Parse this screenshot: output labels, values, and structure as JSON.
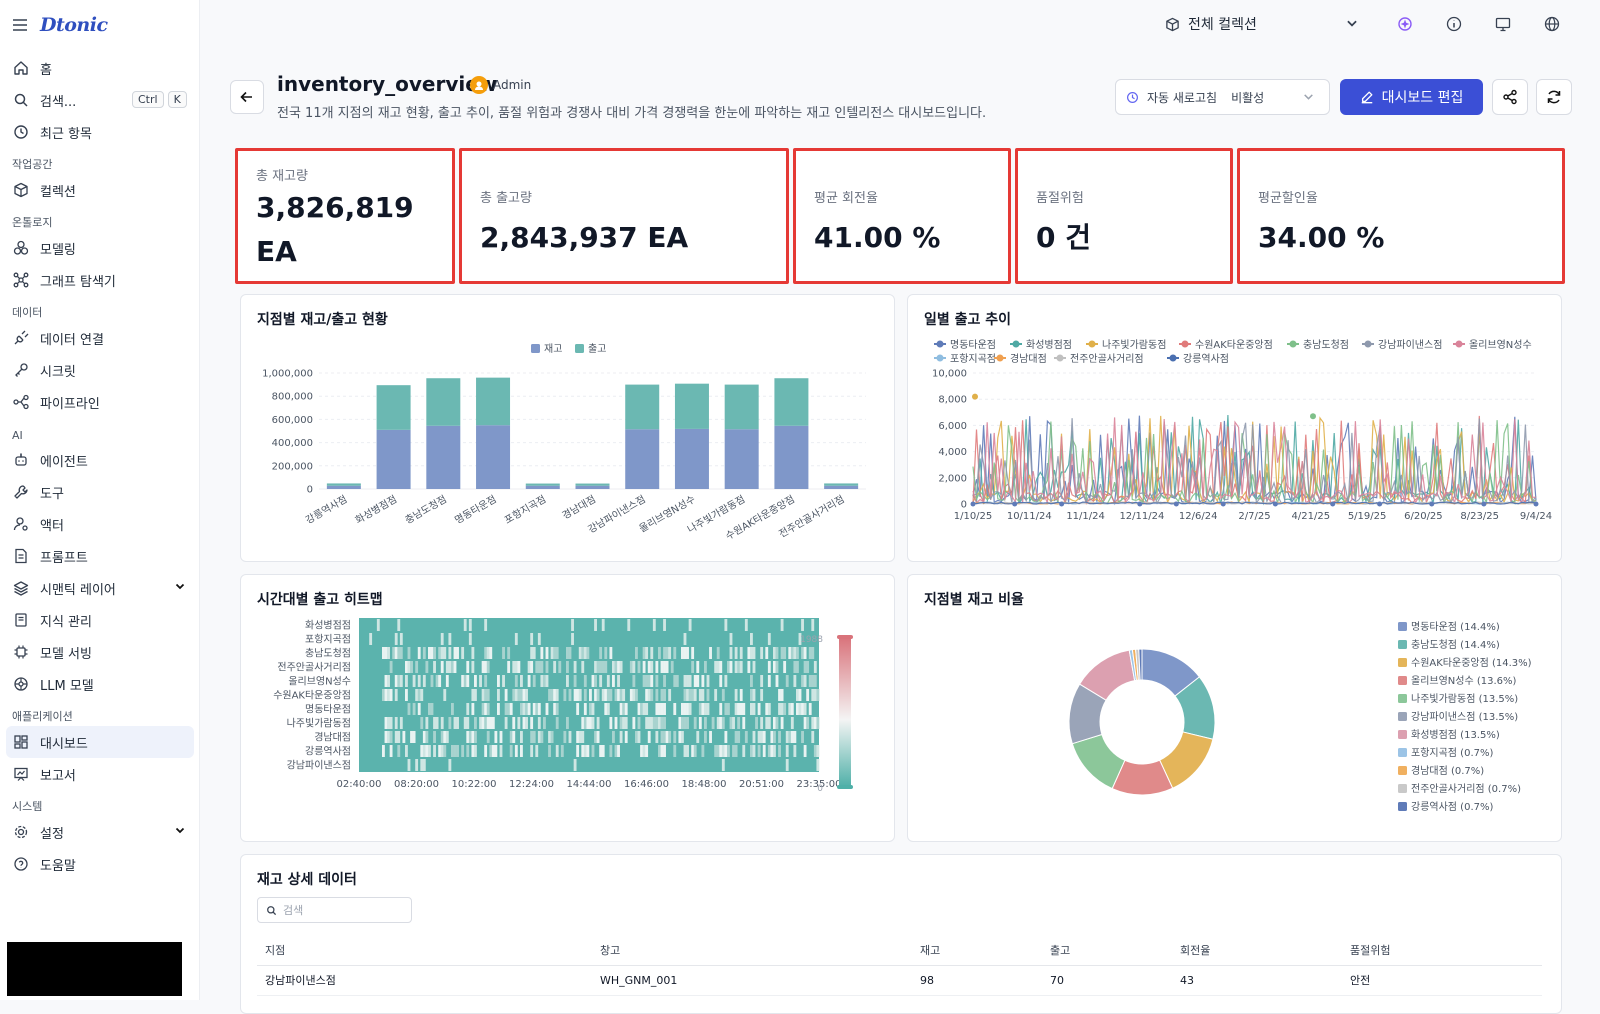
{
  "app": {
    "logo": "Dtonic",
    "user_box_color": "#000000"
  },
  "sidebar": {
    "home": "홈",
    "search": "검색...",
    "search_kbd1": "Ctrl",
    "search_kbd2": "K",
    "recent": "최근 항목",
    "group_workspace": "작업공간",
    "collection": "컬렉션",
    "group_ontology": "온톨로지",
    "modeling": "모델링",
    "graph_explorer": "그래프 탐색기",
    "group_data": "데이터",
    "data_connect": "데이터 연결",
    "secret": "시크릿",
    "pipeline": "파이프라인",
    "group_ai": "AI",
    "agent": "에이전트",
    "tool": "도구",
    "actor": "액터",
    "prompt": "프롬프트",
    "semantic_layer": "시맨틱 레이어",
    "knowledge": "지식 관리",
    "model_serving": "모델 서빙",
    "llm_model": "LLM 모델",
    "group_app": "애플리케이션",
    "dashboard": "대시보드",
    "report": "보고서",
    "group_system": "시스템",
    "settings": "설정",
    "help": "도움말"
  },
  "topbar": {
    "collection_selector": "전체 컬렉션"
  },
  "header": {
    "title": "inventory_overview",
    "owner": "Admin",
    "description": "전국 11개 지점의 재고 현황, 출고 추이, 품절 위험과 경쟁사 대비 가격 경쟁력을 한눈에 파악하는 재고 인텔리전스 대시보드입니다.",
    "auto_refresh_label": "자동 새로고침",
    "auto_refresh_value": "비활성",
    "edit_button": "대시보드 편집"
  },
  "kpis": [
    {
      "label": "총 재고량",
      "value": "3,826,819 EA"
    },
    {
      "label": "총 출고량",
      "value": "2,843,937 EA"
    },
    {
      "label": "평균 회전율",
      "value": "41.00 %"
    },
    {
      "label": "품절위험",
      "value": "0 건"
    },
    {
      "label": "평균할인율",
      "value": "34.00 %"
    }
  ],
  "colors": {
    "accent": "#3b4fd6",
    "kpi_border": "#e53935",
    "stock": "#7f97c9",
    "ship": "#6bb8b2"
  },
  "charts": {
    "bar_title": "지점별 재고/출고 현황",
    "line_title": "일별 출고 추이",
    "heatmap_title": "시간대별 출고 히트맵",
    "pie_title": "지점별 재고 비율"
  },
  "chart_data": [
    {
      "type": "bar",
      "title": "지점별 재고/출고 현황",
      "stacked": true,
      "categories": [
        "강릉역사점",
        "화성병점점",
        "충남도청점",
        "명동타운점",
        "포항지곡점",
        "경남대점",
        "강남파이낸스점",
        "올리브영N성수",
        "나주빛가람동점",
        "수원AK타운중앙점",
        "전주안골사거리점"
      ],
      "series": [
        {
          "name": "재고",
          "values": [
            28000,
            510000,
            545000,
            550000,
            28000,
            28000,
            515000,
            518000,
            515000,
            545000,
            28000
          ]
        },
        {
          "name": "출고",
          "values": [
            20000,
            385000,
            410000,
            410000,
            19000,
            19000,
            385000,
            390000,
            385000,
            410000,
            20000
          ]
        }
      ],
      "yticks": [
        "1,000,000",
        "800,000",
        "600,000",
        "400,000",
        "200,000",
        "0"
      ],
      "ylim": [
        0,
        1000000
      ],
      "legend": "top-center"
    },
    {
      "type": "line",
      "title": "일별 출고 추이",
      "series_names": [
        "명동타운점",
        "화성병점점",
        "나주빛가람동점",
        "수원AK타운중앙점",
        "충남도청점",
        "강남파이낸스점",
        "올리브영N성수",
        "포항지곡점",
        "경남대점",
        "전주안골사거리점",
        "강릉역사점"
      ],
      "series_colors": [
        "#5f7bb8",
        "#4fa9a4",
        "#e0b04a",
        "#e07b7b",
        "#7fc08a",
        "#8e99ad",
        "#d9849a",
        "#8fbde0",
        "#f0a050",
        "#c0c0c0",
        "#4a6fb0"
      ],
      "xticks": [
        "1/10/25",
        "10/11/24",
        "11/1/24",
        "12/11/24",
        "12/6/24",
        "2/7/25",
        "4/21/25",
        "5/19/25",
        "6/20/25",
        "8/23/25",
        "9/4/24"
      ],
      "yticks": [
        "10,000",
        "8,000",
        "6,000",
        "4,000",
        "2,000",
        "0"
      ],
      "ylim": [
        0,
        10000
      ],
      "legend": "top"
    },
    {
      "type": "heatmap",
      "title": "시간대별 출고 히트맵",
      "rows": [
        "화성병점점",
        "포항지곡점",
        "충남도청점",
        "전주안골사거리점",
        "올리브영N성수",
        "수원AK타운중앙점",
        "명동타운점",
        "나주빛가람동점",
        "경남대점",
        "강릉역사점",
        "강남파이낸스점"
      ],
      "xticks": [
        "02:40:00",
        "08:20:00",
        "10:22:00",
        "12:24:00",
        "14:44:00",
        "16:46:00",
        "18:48:00",
        "20:51:00",
        "23:35:00"
      ],
      "scale_max": "1988",
      "scale_min": "0"
    },
    {
      "type": "pie",
      "title": "지점별 재고 비율",
      "donut": true,
      "slices": [
        {
          "name": "명동타운점",
          "pct": 14.4,
          "label": "명동타운점 (14.4%)",
          "color": "#7f97c9"
        },
        {
          "name": "충남도청점",
          "pct": 14.4,
          "label": "충남도청점 (14.4%)",
          "color": "#6bb8b2"
        },
        {
          "name": "수원AK타운중앙점",
          "pct": 14.3,
          "label": "수원AK타운중앙점 (14.3%)",
          "color": "#e4b55a"
        },
        {
          "name": "올리브영N성수",
          "pct": 13.6,
          "label": "올리브영N성수 (13.6%)",
          "color": "#e08a8a"
        },
        {
          "name": "나주빛가람동점",
          "pct": 13.5,
          "label": "나주빛가람동점 (13.5%)",
          "color": "#8cc79a"
        },
        {
          "name": "강남파이낸스점",
          "pct": 13.5,
          "label": "강남파이낸스점 (13.5%)",
          "color": "#9aa4b8"
        },
        {
          "name": "화성병점점",
          "pct": 13.5,
          "label": "화성병점점 (13.5%)",
          "color": "#dca0b0"
        },
        {
          "name": "포항지곡점",
          "pct": 0.7,
          "label": "포항지곡점 (0.7%)",
          "color": "#9cc4e6"
        },
        {
          "name": "경남대점",
          "pct": 0.7,
          "label": "경남대점 (0.7%)",
          "color": "#f0b060"
        },
        {
          "name": "전주안골사거리점",
          "pct": 0.7,
          "label": "전주안골사거리점 (0.7%)",
          "color": "#c9c9c9"
        },
        {
          "name": "강릉역사점",
          "pct": 0.7,
          "label": "강릉역사점 (0.7%)",
          "color": "#5f7bb8"
        }
      ],
      "legend": "right"
    }
  ],
  "table": {
    "title": "재고 상세 데이터",
    "search_placeholder": "검색",
    "columns": [
      "지점",
      "창고",
      "재고",
      "출고",
      "회전율",
      "품절위험"
    ],
    "rows": [
      [
        "강남파이낸스점",
        "WH_GNM_001",
        "98",
        "70",
        "43",
        "안전"
      ]
    ]
  }
}
